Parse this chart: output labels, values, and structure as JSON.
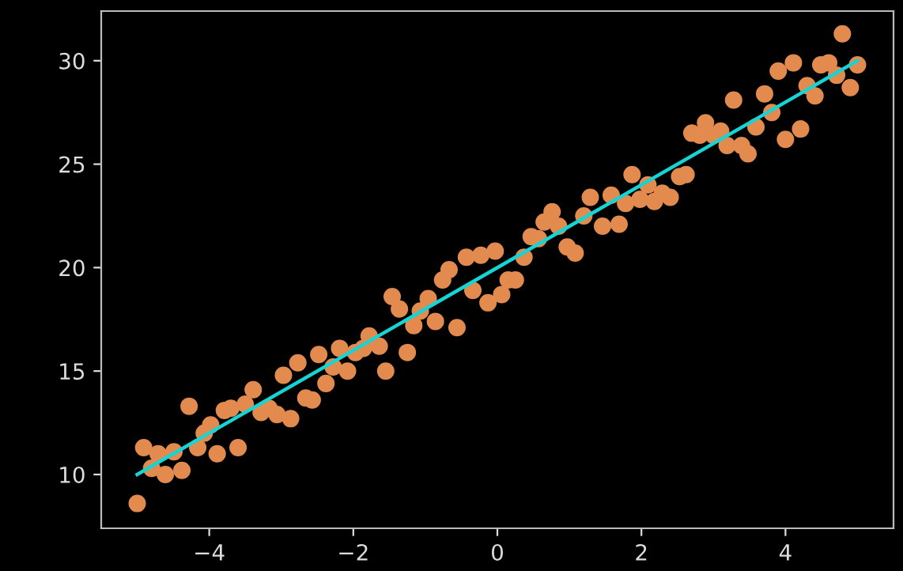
{
  "chart_data": {
    "type": "scatter",
    "xlim": [
      -5.5,
      5.5
    ],
    "ylim": [
      7.4,
      32.4
    ],
    "xticks": [
      {
        "value": -4,
        "label": "−4"
      },
      {
        "value": -2,
        "label": "−2"
      },
      0,
      2,
      4
    ],
    "yticks": [
      10,
      15,
      20,
      25,
      30
    ],
    "grid": false,
    "legend": false,
    "series": [
      {
        "color": "#e38b4f",
        "marker": "circle",
        "x": [
          -5.0,
          -4.91,
          -4.8,
          -4.71,
          -4.61,
          -4.49,
          -4.38,
          -4.28,
          -4.16,
          -4.07,
          -3.98,
          -3.89,
          -3.79,
          -3.7,
          -3.6,
          -3.5,
          -3.39,
          -3.28,
          -3.17,
          -3.06,
          -2.97,
          -2.87,
          -2.77,
          -2.66,
          -2.57,
          -2.48,
          -2.38,
          -2.28,
          -2.19,
          -2.08,
          -1.97,
          -1.86,
          -1.78,
          -1.64,
          -1.55,
          -1.46,
          -1.36,
          -1.25,
          -1.16,
          -1.07,
          -0.96,
          -0.86,
          -0.76,
          -0.67,
          -0.56,
          -0.43,
          -0.34,
          -0.23,
          -0.13,
          -0.03,
          0.06,
          0.15,
          0.25,
          0.37,
          0.47,
          0.57,
          0.65,
          0.76,
          0.85,
          0.97,
          1.08,
          1.2,
          1.29,
          1.46,
          1.58,
          1.69,
          1.78,
          1.87,
          1.98,
          2.09,
          2.18,
          2.29,
          2.4,
          2.53,
          2.62,
          2.7,
          2.81,
          2.89,
          3.0,
          3.1,
          3.19,
          3.28,
          3.39,
          3.48,
          3.59,
          3.71,
          3.81,
          3.9,
          4.0,
          4.11,
          4.21,
          4.3,
          4.41,
          4.49,
          4.6,
          4.71,
          4.79,
          4.9,
          5.0
        ],
        "values": [
          8.6,
          11.3,
          10.3,
          11.0,
          10.0,
          11.1,
          10.2,
          13.3,
          11.3,
          12.0,
          12.4,
          11.0,
          13.1,
          13.2,
          11.3,
          13.4,
          14.1,
          13.0,
          13.2,
          12.9,
          14.8,
          12.7,
          15.4,
          13.7,
          13.6,
          15.8,
          14.4,
          15.2,
          16.1,
          15.0,
          15.9,
          16.1,
          16.7,
          16.2,
          15.0,
          18.6,
          18.0,
          15.9,
          17.2,
          17.9,
          18.5,
          17.4,
          19.4,
          19.9,
          17.1,
          20.5,
          18.9,
          20.6,
          18.3,
          20.8,
          18.7,
          19.4,
          19.4,
          20.5,
          21.5,
          21.4,
          22.2,
          22.7,
          22.0,
          21.0,
          20.7,
          22.5,
          23.4,
          22.0,
          23.5,
          22.1,
          23.1,
          24.5,
          23.3,
          24.0,
          23.2,
          23.6,
          23.4,
          24.4,
          24.5,
          26.5,
          26.4,
          27.0,
          26.4,
          26.6,
          25.9,
          28.1,
          25.9,
          25.5,
          26.8,
          28.4,
          27.5,
          29.5,
          26.2,
          29.9,
          26.7,
          28.8,
          28.3,
          29.8,
          29.9,
          29.3,
          31.3,
          28.7,
          29.8
        ]
      },
      {
        "type": "line",
        "marker": "none",
        "color": "#17d4d4",
        "x": [
          -5,
          5
        ],
        "values": [
          10,
          30
        ]
      }
    ]
  }
}
